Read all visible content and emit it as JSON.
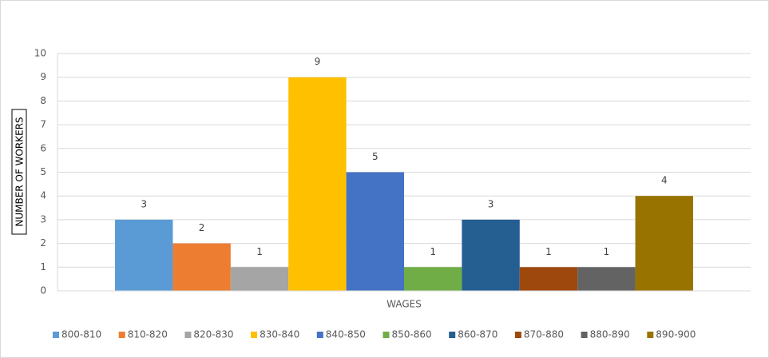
{
  "chart_data": {
    "type": "bar",
    "x_label": "WAGES",
    "y_label": "NUMBER OF WORKERS",
    "categories": [
      null
    ],
    "series": [
      {
        "name": "800-810",
        "color": "#5b9bd5",
        "values": [
          3
        ]
      },
      {
        "name": "810-820",
        "color": "#ed7d31",
        "values": [
          2
        ]
      },
      {
        "name": "820-830",
        "color": "#a5a5a5",
        "values": [
          1
        ]
      },
      {
        "name": "830-840",
        "color": "#ffc000",
        "values": [
          9
        ]
      },
      {
        "name": "840-850",
        "color": "#4472c4",
        "values": [
          5
        ]
      },
      {
        "name": "850-860",
        "color": "#70ad47",
        "values": [
          1
        ]
      },
      {
        "name": "860-870",
        "color": "#255e91",
        "values": [
          3
        ]
      },
      {
        "name": "870-880",
        "color": "#9e480e",
        "values": [
          1
        ]
      },
      {
        "name": "880-890",
        "color": "#636363",
        "values": [
          1
        ]
      },
      {
        "name": "890-900",
        "color": "#997300",
        "values": [
          4
        ]
      }
    ],
    "ylim": [
      0,
      10
    ],
    "yticks": [
      0,
      1,
      2,
      3,
      4,
      5,
      6,
      7,
      8,
      9,
      10
    ],
    "grid": true,
    "legend": "bottom"
  }
}
